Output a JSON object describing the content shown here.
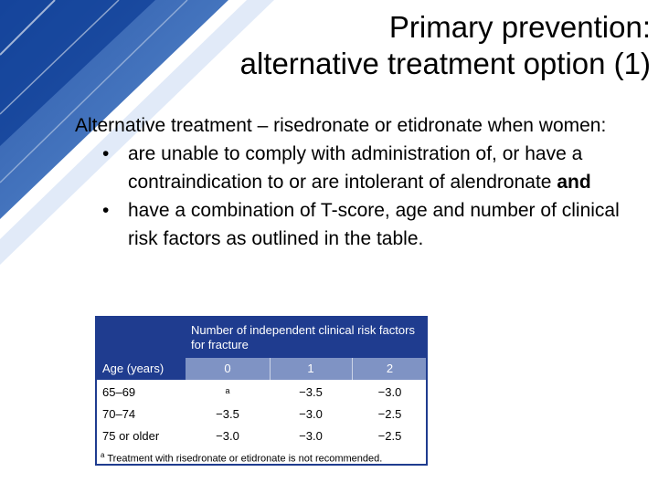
{
  "slide": {
    "title_line1": "Primary prevention:",
    "title_line2": "alternative treatment option (1)",
    "intro": "Alternative treatment – risedronate or etidronate when women:",
    "bullet1_text": "are unable to comply with administration of, or have a contraindication to or are intolerant of alendronate ",
    "bullet1_bold": "and",
    "bullet2_text": "have a combination of T-score, age and number of clinical risk factors as outlined in the table.",
    "bullet_glyph": "•"
  },
  "table": {
    "group_header": "Number of independent clinical risk factors for fracture",
    "age_header": "Age (years)",
    "columns": [
      "0",
      "1",
      "2"
    ],
    "rows": [
      {
        "age": "65–69",
        "values": [
          "a",
          "−3.5",
          "−3.0"
        ]
      },
      {
        "age": "70–74",
        "values": [
          "−3.5",
          "−3.0",
          "−2.5"
        ]
      },
      {
        "age": "75 or older",
        "values": [
          "−3.0",
          "−3.0",
          "−2.5"
        ]
      }
    ],
    "footnote_mark": "a",
    "footnote": "Treatment with risedronate or etidronate is not recommended."
  },
  "colors": {
    "accent_blue": "#1f3c8f",
    "light_blue": "#7f93c4",
    "background_decoration": "#1f5aa8"
  }
}
